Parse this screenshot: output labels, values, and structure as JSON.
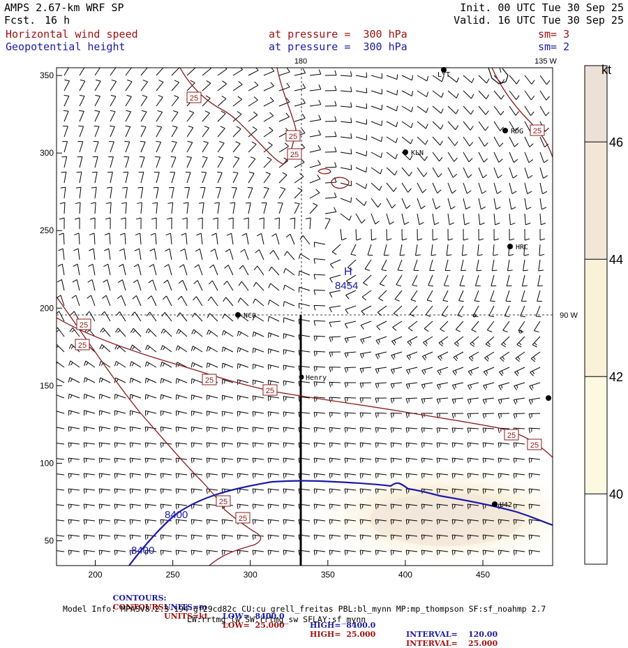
{
  "header": {
    "model": "AMPS 2.67-km WRF SP",
    "fcst_label": "Fcst.",
    "fcst_value": "16 h",
    "init": "Init. 00 UTC Tue 30 Sep 25",
    "valid": "Valid. 16 UTC Tue 30 Sep 25",
    "field1": "Horizontal wind speed",
    "field1_level": "at pressure =  300 hPa",
    "field1_sm": "sm= 3",
    "field2": "Geopotential height",
    "field2_level": "at pressure =  300 hPa",
    "field2_sm": "sm= 2"
  },
  "chart_data": {
    "type": "contour-map",
    "xlim": [
      175,
      495
    ],
    "ylim": [
      34,
      355
    ],
    "x_ticks": [
      200,
      250,
      300,
      350,
      400,
      450
    ],
    "y_ticks": [
      50,
      100,
      150,
      200,
      250,
      300,
      350
    ],
    "meridian_labels": [
      "180",
      "135 W",
      "90 W"
    ],
    "colorbar": {
      "unit": "kt",
      "ticks": [
        40,
        42,
        44,
        46
      ],
      "range": [
        38.8,
        47.3
      ],
      "colors": [
        "#ffffff",
        "#fdf8e0",
        "#f9f1d8",
        "#f3e6d8",
        "#ede0d6"
      ]
    },
    "height_contours": [
      {
        "label": "8400",
        "value": 8400,
        "color": "#1a1aa6"
      }
    ],
    "height_high": {
      "label": "H",
      "value": "8454"
    },
    "wind_contours": [
      {
        "label": "25",
        "value": 25,
        "color": "#8b1a1a"
      }
    ],
    "stations": [
      "NCO",
      "Henry",
      "KLN",
      "RDG",
      "HRC",
      "LYT",
      "U42"
    ],
    "contour_info": [
      {
        "prefix": "CONTOURS:",
        "units": "UNITS=m",
        "low": "LOW=  8400.0",
        "high": "HIGH=  8400.0",
        "interval": "INTERVAL=    120.00",
        "color": "#1a1aa6"
      },
      {
        "prefix": "CONTOURS:",
        "units": "UNITS=kt",
        "low": "LOW=  25.000",
        "high": "HIGH=  25.000",
        "interval": "INTERVAL=    25.000",
        "color": "#a01010"
      }
    ],
    "model_info_line1": "Model Info: MPASv8.2.3-194-gf29cd82c CU:cu_grell_freitas PBL:bl_mynn MP:mp_thompson SF:sf_noahmp 2.7",
    "model_info_line2": "LW:rrtmg_lw SW:rrtmg_sw SFLAY:sf_mynn"
  }
}
